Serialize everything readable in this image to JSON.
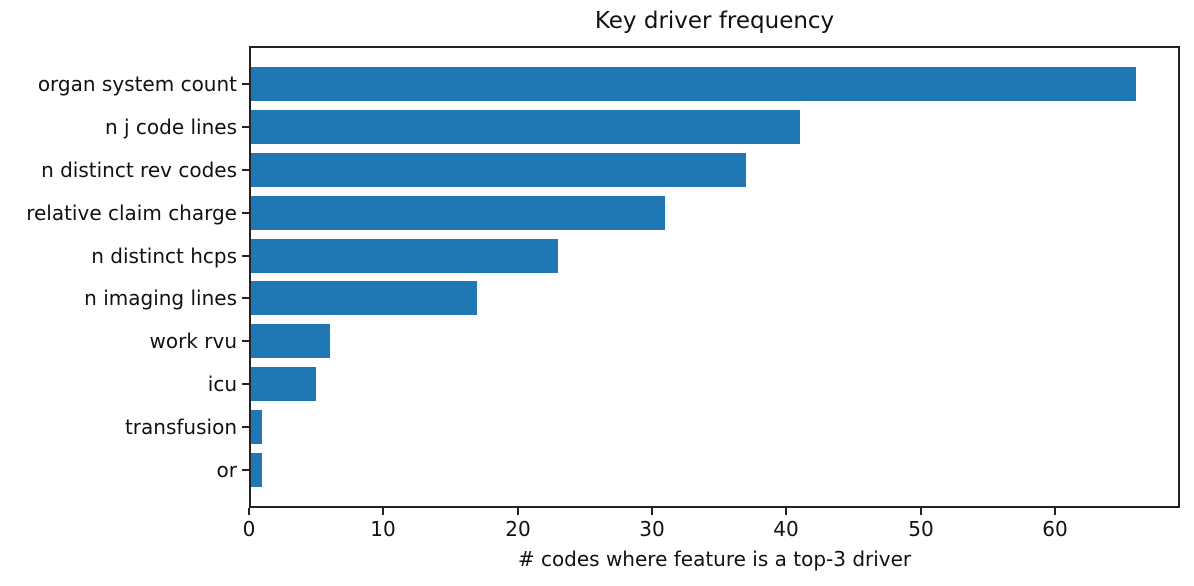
{
  "chart_data": {
    "type": "bar",
    "orientation": "horizontal",
    "title": "Key driver frequency",
    "xlabel": "# codes where feature is a top-3 driver",
    "ylabel": "",
    "categories": [
      "organ system count",
      "n j code lines",
      "n distinct rev codes",
      "relative claim charge",
      "n distinct hcps",
      "n imaging lines",
      "work rvu",
      "icu",
      "transfusion",
      "or"
    ],
    "values": [
      66,
      41,
      37,
      31,
      23,
      17,
      6,
      5,
      1,
      1
    ],
    "x_ticks": [
      0,
      10,
      20,
      30,
      40,
      50,
      60
    ],
    "xlim": [
      0,
      69.3
    ],
    "bar_color": "#1f77b4",
    "grid": false,
    "legend_position": "none"
  }
}
